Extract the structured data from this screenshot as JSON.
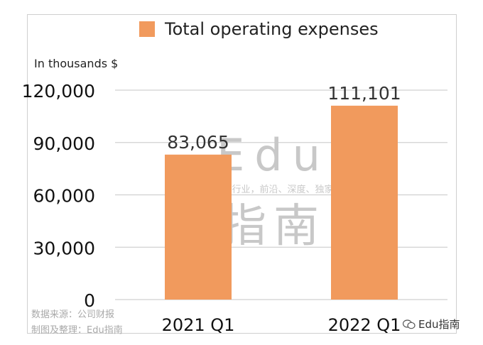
{
  "chart_data": {
    "type": "bar",
    "title": "",
    "legend": {
      "position": "top",
      "entries": [
        "Total operating expenses"
      ]
    },
    "ylabel": "In thousands $",
    "xlabel": "",
    "categories": [
      "2021 Q1",
      "2022 Q1"
    ],
    "series": [
      {
        "name": "Total operating expenses",
        "values": [
          83065,
          111101
        ],
        "color": "#f19a5d"
      }
    ],
    "value_labels": [
      "83,065",
      "111,101"
    ],
    "yticks": [
      0,
      30000,
      60000,
      90000,
      120000
    ],
    "ytick_labels": [
      "0",
      "30,000",
      "60,000",
      "90,000",
      "120,000"
    ],
    "ylim": [
      0,
      120000
    ],
    "grid": true
  },
  "watermark": {
    "line1": "Edu",
    "line2": "教育行业，前沿、深度、独家",
    "line3": "指南"
  },
  "footer": {
    "source": "数据来源：公司财报",
    "made_by": "制图及整理：Edu指南",
    "brand": "Edu指南",
    "brand_icon": "wechat-icon"
  }
}
